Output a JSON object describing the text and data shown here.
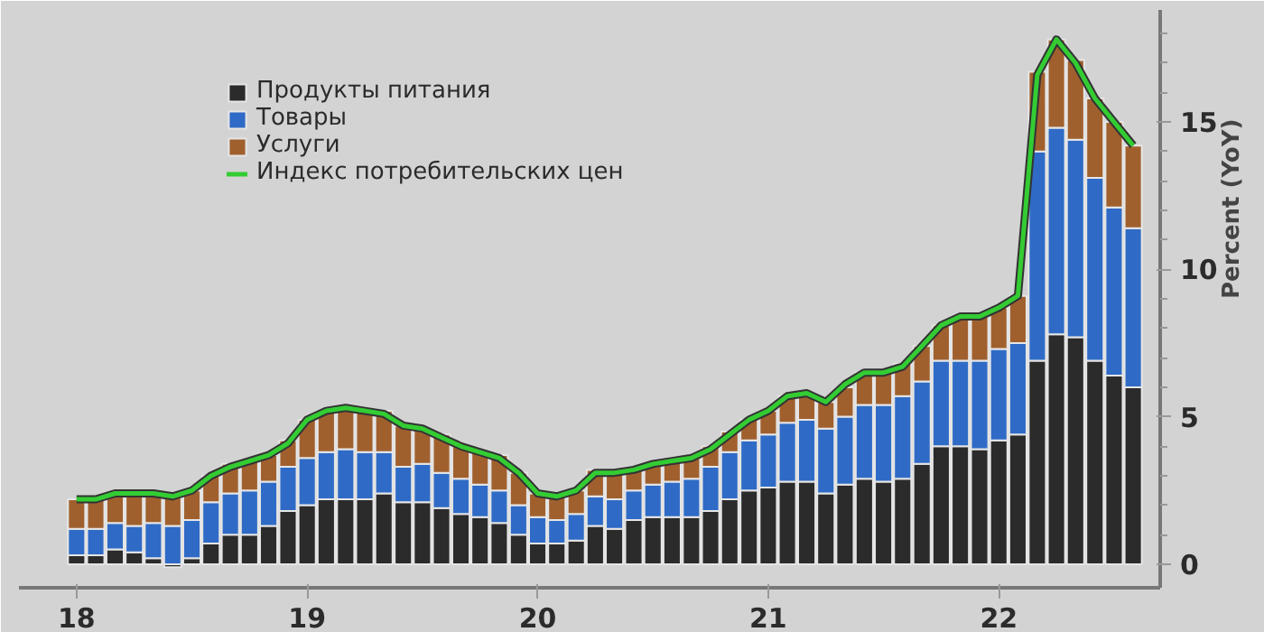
{
  "chart_data": {
    "type": "bar",
    "stacked": true,
    "ylabel": "Percent (YoY)",
    "x": [
      18,
      18.083,
      18.167,
      18.25,
      18.333,
      18.417,
      18.5,
      18.583,
      18.667,
      18.75,
      18.833,
      18.917,
      19,
      19.083,
      19.167,
      19.25,
      19.333,
      19.417,
      19.5,
      19.583,
      19.667,
      19.75,
      19.833,
      19.917,
      20,
      20.083,
      20.167,
      20.25,
      20.333,
      20.417,
      20.5,
      20.583,
      20.667,
      20.75,
      20.833,
      20.917,
      21,
      21.083,
      21.167,
      21.25,
      21.333,
      21.417,
      21.5,
      21.583,
      21.667,
      21.75,
      21.833,
      21.917,
      22,
      22.083,
      22.167,
      22.25,
      22.333,
      22.417,
      22.5,
      22.583
    ],
    "series": [
      {
        "name": "Продукты питания",
        "color": "#2b2b2b",
        "values": [
          0.3,
          0.3,
          0.5,
          0.4,
          0.2,
          -0.1,
          0.2,
          0.7,
          1.0,
          1.0,
          1.3,
          1.8,
          2.0,
          2.2,
          2.2,
          2.2,
          2.4,
          2.1,
          2.1,
          1.9,
          1.7,
          1.6,
          1.4,
          1.0,
          0.7,
          0.7,
          0.8,
          1.3,
          1.2,
          1.5,
          1.6,
          1.6,
          1.6,
          1.8,
          2.2,
          2.5,
          2.6,
          2.8,
          2.8,
          2.4,
          2.7,
          2.9,
          2.8,
          2.9,
          3.4,
          4.0,
          4.0,
          3.9,
          4.2,
          4.4,
          6.9,
          7.8,
          7.7,
          6.9,
          6.4,
          6.0
        ]
      },
      {
        "name": "Товары",
        "color": "#2f6bc6",
        "values": [
          0.9,
          0.9,
          0.9,
          0.9,
          1.2,
          1.3,
          1.3,
          1.4,
          1.4,
          1.5,
          1.5,
          1.5,
          1.6,
          1.6,
          1.7,
          1.6,
          1.4,
          1.2,
          1.3,
          1.2,
          1.2,
          1.1,
          1.1,
          1.0,
          0.9,
          0.8,
          0.9,
          1.0,
          1.0,
          1.0,
          1.1,
          1.2,
          1.3,
          1.5,
          1.6,
          1.7,
          1.8,
          2.0,
          2.1,
          2.2,
          2.3,
          2.5,
          2.6,
          2.8,
          2.8,
          2.9,
          2.9,
          3.0,
          3.1,
          3.1,
          7.1,
          7.0,
          6.7,
          6.2,
          5.7,
          5.4
        ]
      },
      {
        "name": "Услуги",
        "color": "#a0602e",
        "values": [
          1.0,
          1.0,
          1.0,
          1.1,
          1.0,
          1.0,
          1.0,
          0.9,
          1.0,
          1.0,
          0.9,
          0.9,
          1.3,
          1.4,
          1.4,
          1.4,
          1.4,
          1.4,
          1.2,
          1.3,
          1.1,
          1.1,
          1.2,
          1.1,
          0.8,
          0.8,
          0.8,
          0.9,
          0.9,
          0.7,
          0.7,
          0.7,
          0.7,
          0.7,
          0.7,
          0.7,
          0.8,
          0.9,
          0.9,
          0.9,
          1.0,
          1.1,
          1.1,
          1.1,
          1.2,
          1.2,
          1.5,
          1.5,
          1.4,
          1.6,
          2.7,
          3.0,
          2.7,
          2.7,
          2.9,
          2.8
        ]
      },
      {
        "name": "Индекс потребительских цен",
        "type": "line",
        "color": "#33cc33",
        "values": [
          2.2,
          2.2,
          2.4,
          2.4,
          2.4,
          2.3,
          2.5,
          3.0,
          3.3,
          3.5,
          3.7,
          4.1,
          4.9,
          5.2,
          5.3,
          5.2,
          5.1,
          4.7,
          4.6,
          4.3,
          4.0,
          3.8,
          3.6,
          3.1,
          2.4,
          2.3,
          2.5,
          3.1,
          3.1,
          3.2,
          3.4,
          3.5,
          3.6,
          3.9,
          4.4,
          4.9,
          5.2,
          5.7,
          5.8,
          5.5,
          6.1,
          6.5,
          6.5,
          6.7,
          7.4,
          8.1,
          8.4,
          8.4,
          8.7,
          9.1,
          16.6,
          17.8,
          17.0,
          15.8,
          15.0,
          14.2
        ]
      }
    ],
    "xlim": [
      17.75,
      22.7
    ],
    "xticks": [
      18,
      19,
      20,
      21,
      22
    ],
    "ylim": [
      -0.8,
      18.8
    ],
    "yticks": [
      0,
      5,
      10,
      15
    ],
    "legend": "top left",
    "grid": false
  }
}
